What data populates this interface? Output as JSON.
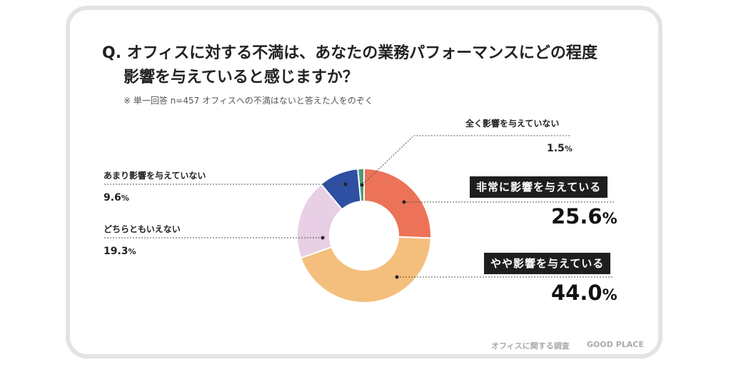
{
  "title": {
    "prefix": "Q.",
    "line1": "オフィスに対する不満は、あなたの業務パフォーマンスにどの程度",
    "line2": "影響を与えていると感じますか？"
  },
  "note": "※ 単一回答 n=457 オフィスへの不満はないと答えた人をのぞく",
  "chart_data": {
    "type": "pie",
    "donut": true,
    "slices": [
      {
        "label": "非常に影響を与えている",
        "value": 25.6,
        "display": "25.6",
        "color": "#ec7357"
      },
      {
        "label": "やや影響を与えている",
        "value": 44.0,
        "display": "44.0",
        "color": "#f4bf7c"
      },
      {
        "label": "どちらともいえない",
        "value": 19.3,
        "display": "19.3",
        "color": "#e8cfe5"
      },
      {
        "label": "あまり影響を与えていない",
        "value": 9.6,
        "display": "9.6",
        "color": "#2e4fa2"
      },
      {
        "label": "全く影響を与えていない",
        "value": 1.5,
        "display": "1.5",
        "color": "#4f9a7a"
      }
    ],
    "unit": "%"
  },
  "footer": {
    "survey": "オフィスに関する調査",
    "brand": "GOOD PLACE"
  }
}
